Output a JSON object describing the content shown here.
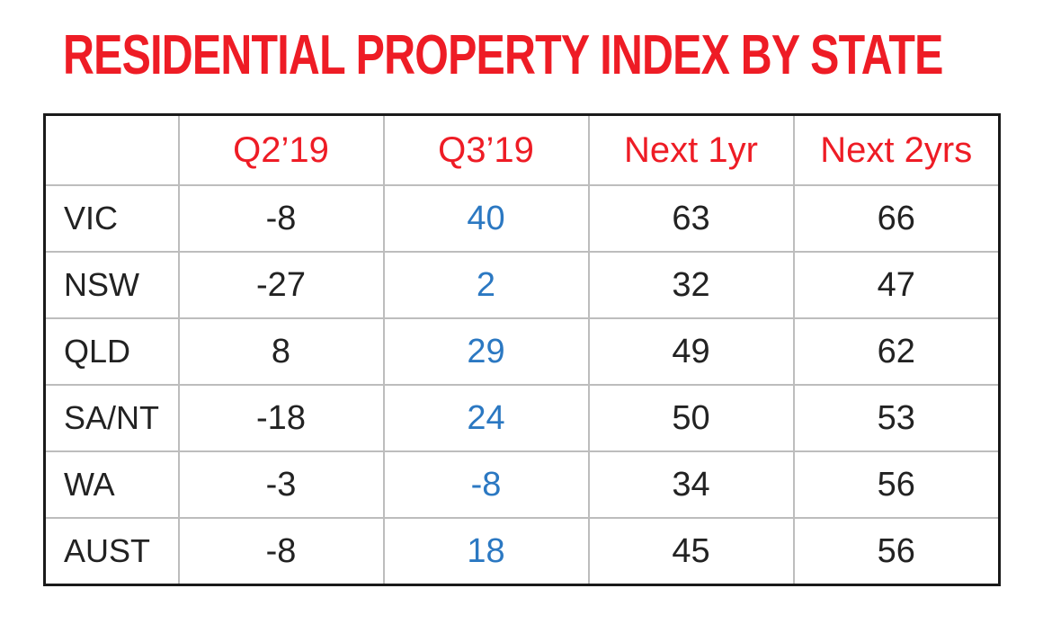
{
  "chart_data": {
    "type": "table",
    "title": "RESIDENTIAL PROPERTY INDEX BY STATE",
    "columns": [
      "",
      "Q2’19",
      "Q3’19",
      "Next 1yr",
      "Next 2yrs"
    ],
    "rows": [
      {
        "state": "VIC",
        "q2_19": "-8",
        "q3_19": "40",
        "next_1yr": "63",
        "next_2yrs": "66"
      },
      {
        "state": "NSW",
        "q2_19": "-27",
        "q3_19": "2",
        "next_1yr": "32",
        "next_2yrs": "47"
      },
      {
        "state": "QLD",
        "q2_19": "8",
        "q3_19": "29",
        "next_1yr": "49",
        "next_2yrs": "62"
      },
      {
        "state": "SA/NT",
        "q2_19": "-18",
        "q3_19": "24",
        "next_1yr": "50",
        "next_2yrs": "53"
      },
      {
        "state": "WA",
        "q2_19": "-3",
        "q3_19": "-8",
        "next_1yr": "34",
        "next_2yrs": "56"
      },
      {
        "state": "AUST",
        "q2_19": "-8",
        "q3_19": "18",
        "next_1yr": "45",
        "next_2yrs": "56"
      }
    ],
    "colors": {
      "title": "#ee1c25",
      "header": "#ee1c25",
      "q3_values": "#2b78c2",
      "values": "#222222",
      "border": "#1a1a1a",
      "grid": "#bdbdbd"
    }
  }
}
